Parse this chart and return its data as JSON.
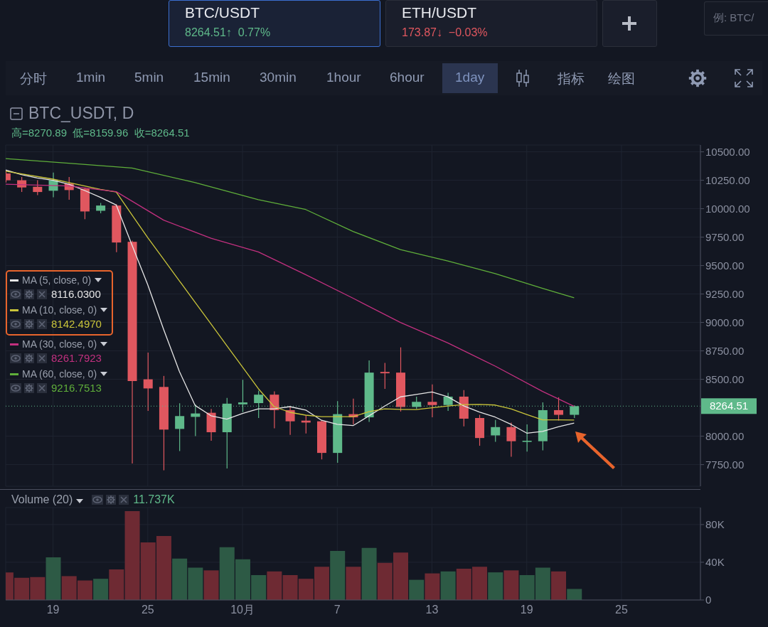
{
  "chart_data": [
    {
      "type": "other",
      "annotations": [
        "BTC/USDT",
        "8264.51↑",
        "0.77%",
        "ETH/USDT",
        "173.87↓",
        "−0.03%",
        "例: BTC/",
        "分时",
        "1min",
        "5min",
        "15min",
        "30min",
        "1hour",
        "6hour",
        "1day",
        "指标",
        "绘图"
      ]
    },
    {
      "type": "candlestick",
      "title": "BTC_USDT, D",
      "subtitle": "高=8270.89  低=8159.96  收=8264.51",
      "x": [
        "--09-16",
        "--09-17",
        "--09-18",
        "--09-19",
        "--09-20",
        "--09-21",
        "--09-22",
        "--09-23",
        "--09-24",
        "--09-25",
        "--09-26",
        "--09-27",
        "--09-28",
        "--09-29",
        "--09-30",
        "--10-01",
        "--10-02",
        "--10-03",
        "--10-04",
        "--10-05",
        "--10-06",
        "--10-07",
        "--10-08",
        "--10-09",
        "--10-10",
        "--10-11",
        "--10-12",
        "--10-13",
        "--10-14",
        "--10-15",
        "--10-16",
        "--10-17",
        "--10-18",
        "--10-19",
        "--10-20",
        "--10-21",
        "--10-22"
      ],
      "ohlc": [
        [
          10310,
          10340,
          10230,
          10250
        ],
        [
          10250,
          10278,
          10147,
          10187
        ],
        [
          10193,
          10250,
          10120,
          10147
        ],
        [
          10158,
          10318,
          10100,
          10250
        ],
        [
          10221,
          10278,
          10079,
          10164
        ],
        [
          10176,
          10180,
          9908,
          9976
        ],
        [
          9982,
          10050,
          9960,
          10028
        ],
        [
          10028,
          10040,
          9618,
          9703
        ],
        [
          9709,
          9720,
          7760,
          8485
        ],
        [
          8500,
          8735,
          8223,
          8420
        ],
        [
          8433,
          8530,
          7700,
          8058
        ],
        [
          8064,
          8290,
          7870,
          8177
        ],
        [
          8170,
          8280,
          8000,
          8200
        ],
        [
          8206,
          8240,
          7960,
          8035
        ],
        [
          8035,
          8337,
          7716,
          8286
        ],
        [
          8280,
          8496,
          8212,
          8297
        ],
        [
          8291,
          8400,
          8160,
          8365
        ],
        [
          8365,
          8394,
          8070,
          8229
        ],
        [
          8229,
          8257,
          8012,
          8131
        ],
        [
          8137,
          8183,
          8024,
          8120
        ],
        [
          8131,
          8140,
          7796,
          7853
        ],
        [
          7853,
          8308,
          7767,
          8194
        ],
        [
          8194,
          8331,
          8103,
          8166
        ],
        [
          8166,
          8667,
          8126,
          8559
        ],
        [
          8565,
          8644,
          8416,
          8553
        ],
        [
          8559,
          8781,
          8217,
          8257
        ],
        [
          8257,
          8348,
          8240,
          8302
        ],
        [
          8302,
          8456,
          8166,
          8274
        ],
        [
          8274,
          8382,
          8223,
          8348
        ],
        [
          8348,
          8405,
          8086,
          8154
        ],
        [
          8160,
          8188,
          7916,
          7984
        ],
        [
          8007,
          8143,
          7950,
          8080
        ],
        [
          8080,
          8120,
          7819,
          7956
        ],
        [
          7950,
          8103,
          7864,
          7960
        ],
        [
          7956,
          8297,
          7876,
          8229
        ],
        [
          8229,
          8342,
          8137,
          8188
        ],
        [
          8188,
          8270.89,
          8159.96,
          8264.51
        ]
      ],
      "series": [
        {
          "type": "line",
          "name": "MA (5, close, 0)",
          "color": "#e6e6e6",
          "x": [
            "--09-16",
            "--09-17",
            "--09-18",
            "--09-19",
            "--09-20",
            "--09-21",
            "--09-22",
            "--09-23",
            "--09-24",
            "--09-25",
            "--09-26",
            "--09-27",
            "--09-28",
            "--09-29",
            "--09-30",
            "--10-01",
            "--10-02",
            "--10-03",
            "--10-04",
            "--10-05",
            "--10-06",
            "--10-07",
            "--10-08",
            "--10-09",
            "--10-10",
            "--10-11",
            "--10-12",
            "--10-13",
            "--10-14",
            "--10-15",
            "--10-16",
            "--10-17",
            "--10-18",
            "--10-19",
            "--10-20",
            "--10-21",
            "--10-22"
          ],
          "values": [
            10340,
            10300,
            10270,
            10250,
            10215,
            10160,
            10100,
            10033,
            9680,
            9330,
            8940,
            8570,
            8270,
            8180,
            8150,
            8200,
            8240,
            8240,
            8260,
            8230,
            8140,
            8105,
            8093,
            8178,
            8265,
            8346,
            8367,
            8389,
            8347,
            8267,
            8212,
            8168,
            8104,
            8027,
            8042,
            8083,
            8116
          ]
        },
        {
          "type": "line",
          "name": "MA (10, close, 0)",
          "color": "#c9c43a",
          "x": [
            "--09-16",
            "--09-19",
            "--09-22",
            "--09-23",
            "--09-24",
            "--09-25",
            "--09-26",
            "--09-27",
            "--09-28",
            "--09-29",
            "--09-30",
            "--10-01",
            "--10-02",
            "--10-03",
            "--10-04",
            "--10-05",
            "--10-06",
            "--10-07",
            "--10-08",
            "--10-09",
            "--10-10",
            "--10-11",
            "--10-12",
            "--10-13",
            "--10-14",
            "--10-15",
            "--10-16",
            "--10-17",
            "--10-18",
            "--10-19",
            "--10-20",
            "--10-21",
            "--10-22"
          ],
          "values": [
            10330,
            10260,
            10170,
            10147,
            9945,
            9745,
            9556,
            9366,
            9177,
            8987,
            8797,
            8608,
            8418,
            8260,
            8210,
            8185,
            8172,
            8172,
            8172,
            8215,
            8240,
            8236,
            8234,
            8250,
            8265,
            8278,
            8280,
            8274,
            8240,
            8190,
            8143,
            8143,
            8142
          ]
        },
        {
          "type": "line",
          "name": "MA (30, close, 0)",
          "color": "#c2307f",
          "x": [
            "--09-16",
            "--09-20",
            "--09-23",
            "--09-26",
            "--09-29",
            "--10-02",
            "--10-05",
            "--10-08",
            "--10-11",
            "--10-14",
            "--10-17",
            "--10-20",
            "--10-22"
          ],
          "values": [
            10215,
            10200,
            10150,
            9900,
            9740,
            9620,
            9420,
            9213,
            9000,
            8820,
            8616,
            8394,
            8262
          ]
        },
        {
          "type": "line",
          "name": "MA (60, close, 0)",
          "color": "#5fae3a",
          "x": [
            "--09-16",
            "--09-20",
            "--09-24",
            "--09-28",
            "--10-02",
            "--10-05",
            "--10-08",
            "--10-11",
            "--10-14",
            "--10-17",
            "--10-20",
            "--10-22"
          ],
          "values": [
            10440,
            10400,
            10358,
            10230,
            10080,
            9993,
            9800,
            9640,
            9540,
            9430,
            9300,
            9217
          ]
        }
      ],
      "annotations": [
        "8116.0300",
        "8142.4970",
        "8261.7923",
        "9216.7513"
      ],
      "ref_lines": [
        {
          "axis": "y",
          "value": 8264.51,
          "label": "8264.51",
          "color": "#5fb98a",
          "line_style": "dotted"
        }
      ],
      "xlim": [
        "--09-16",
        "--10-30"
      ],
      "xticks": [
        {
          "value": "--09-19",
          "label": null
        },
        {
          "value": "--09-25",
          "label": null
        },
        {
          "value": "--10-01",
          "label": null
        },
        {
          "value": "--10-07",
          "label": null
        },
        {
          "value": "--10-13",
          "label": null
        },
        {
          "value": "--10-19",
          "label": null
        },
        {
          "value": "--10-25",
          "label": null
        }
      ],
      "ylim": [
        7560,
        10560
      ],
      "yticks": [
        {
          "value": 7750,
          "label": "7750.00"
        },
        {
          "value": 8000,
          "label": "8000.00"
        },
        {
          "value": 8500,
          "label": "8500.00"
        },
        {
          "value": 8750,
          "label": "8750.00"
        },
        {
          "value": 9000,
          "label": "9000.00"
        },
        {
          "value": 9250,
          "label": "9250.00"
        },
        {
          "value": 9500,
          "label": "9500.00"
        },
        {
          "value": 9750,
          "label": "9750.00"
        },
        {
          "value": 10000,
          "label": "10000.00"
        },
        {
          "value": 10250,
          "label": "10250.00"
        },
        {
          "value": 10500,
          "label": "10500.00"
        }
      ],
      "grid": true,
      "legend": "left",
      "tick_labels": "y"
    },
    {
      "type": "bar",
      "title": "Volume (20)",
      "subtitle": "11.737K",
      "x": [
        "--09-16",
        "--09-17",
        "--09-18",
        "--09-19",
        "--09-20",
        "--09-21",
        "--09-22",
        "--09-23",
        "--09-24",
        "--09-25",
        "--09-26",
        "--09-27",
        "--09-28",
        "--09-29",
        "--09-30",
        "--10-01",
        "--10-02",
        "--10-03",
        "--10-04",
        "--10-05",
        "--10-06",
        "--10-07",
        "--10-08",
        "--10-09",
        "--10-10",
        "--10-11",
        "--10-12",
        "--10-13",
        "--10-14",
        "--10-15",
        "--10-16",
        "--10-17",
        "--10-18",
        "--10-19",
        "--10-20",
        "--10-21",
        "--10-22"
      ],
      "values": [
        29.3,
        23.6,
        24.3,
        45.3,
        25.3,
        20.7,
        22.5,
        32.5,
        94.2,
        61.0,
        67.8,
        43.9,
        34.3,
        31.4,
        56.0,
        43.2,
        26.4,
        30.3,
        26.4,
        22.5,
        35.3,
        52.1,
        35.3,
        55.3,
        39.3,
        50.3,
        21.4,
        28.2,
        30.3,
        33.2,
        35.3,
        29.3,
        31.4,
        26.4,
        34.3,
        30.3,
        11.7
      ],
      "colors": [
        "#6e2a33",
        "#6e2a33",
        "#6e2a33",
        "#2d5a45",
        "#6e2a33",
        "#6e2a33",
        "#2d5a45",
        "#6e2a33",
        "#6e2a33",
        "#6e2a33",
        "#6e2a33",
        "#2d5a45",
        "#2d5a45",
        "#6e2a33",
        "#2d5a45",
        "#2d5a45",
        "#2d5a45",
        "#6e2a33",
        "#6e2a33",
        "#6e2a33",
        "#6e2a33",
        "#2d5a45",
        "#6e2a33",
        "#2d5a45",
        "#6e2a33",
        "#6e2a33",
        "#2d5a45",
        "#6e2a33",
        "#2d5a45",
        "#6e2a33",
        "#6e2a33",
        "#2d5a45",
        "#6e2a33",
        "#2d5a45",
        "#2d5a45",
        "#6e2a33",
        "#2d5a45"
      ],
      "xlim": [
        "--09-16",
        "--10-30"
      ],
      "xticks": [
        {
          "value": "--09-19",
          "label": "19"
        },
        {
          "value": "--09-25",
          "label": "25"
        },
        {
          "value": "--10-01",
          "label": "10月"
        },
        {
          "value": "--10-07",
          "label": "7"
        },
        {
          "value": "--10-13",
          "label": "13"
        },
        {
          "value": "--10-19",
          "label": "19"
        },
        {
          "value": "--10-25",
          "label": "25"
        }
      ],
      "ylim": [
        0,
        98
      ],
      "yticks": [
        {
          "value": 0,
          "label": "0"
        },
        {
          "value": 40,
          "label": "40K"
        },
        {
          "value": 80,
          "label": "80K"
        }
      ],
      "grid": true
    }
  ]
}
